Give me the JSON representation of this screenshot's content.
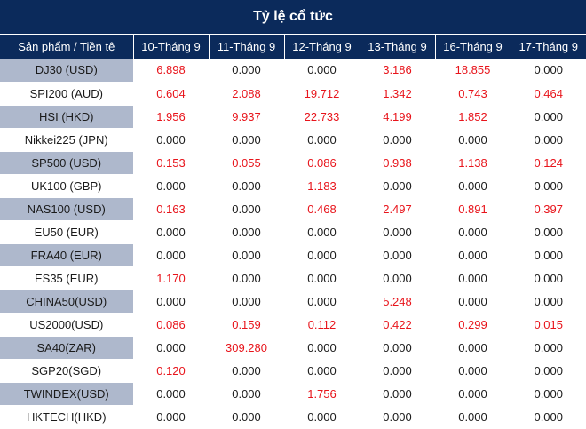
{
  "title": "Tỷ lệ cổ tức",
  "header": {
    "product": "Sản phẩm / Tiền tệ",
    "dates": [
      "10-Tháng 9",
      "11-Tháng 9",
      "12-Tháng 9",
      "13-Tháng 9",
      "16-Tháng 9",
      "17-Tháng 9"
    ]
  },
  "colors": {
    "header_bg": "#0b2a5b",
    "shade": "#aeb8cc",
    "nonzero": "#e8141b",
    "zero": "#1a1a1a"
  },
  "rows": [
    {
      "product": "DJ30 (USD)",
      "values": [
        "6.898",
        "0.000",
        "0.000",
        "3.186",
        "18.855",
        "0.000"
      ]
    },
    {
      "product": "SPI200 (AUD)",
      "values": [
        "0.604",
        "2.088",
        "19.712",
        "1.342",
        "0.743",
        "0.464"
      ]
    },
    {
      "product": "HSI (HKD)",
      "values": [
        "1.956",
        "9.937",
        "22.733",
        "4.199",
        "1.852",
        "0.000"
      ]
    },
    {
      "product": "Nikkei225 (JPN)",
      "values": [
        "0.000",
        "0.000",
        "0.000",
        "0.000",
        "0.000",
        "0.000"
      ]
    },
    {
      "product": "SP500 (USD)",
      "values": [
        "0.153",
        "0.055",
        "0.086",
        "0.938",
        "1.138",
        "0.124"
      ]
    },
    {
      "product": "UK100 (GBP)",
      "values": [
        "0.000",
        "0.000",
        "1.183",
        "0.000",
        "0.000",
        "0.000"
      ]
    },
    {
      "product": "NAS100 (USD)",
      "values": [
        "0.163",
        "0.000",
        "0.468",
        "2.497",
        "0.891",
        "0.397"
      ]
    },
    {
      "product": "EU50 (EUR)",
      "values": [
        "0.000",
        "0.000",
        "0.000",
        "0.000",
        "0.000",
        "0.000"
      ]
    },
    {
      "product": "FRA40 (EUR)",
      "values": [
        "0.000",
        "0.000",
        "0.000",
        "0.000",
        "0.000",
        "0.000"
      ]
    },
    {
      "product": "ES35 (EUR)",
      "values": [
        "1.170",
        "0.000",
        "0.000",
        "0.000",
        "0.000",
        "0.000"
      ]
    },
    {
      "product": "CHINA50(USD)",
      "values": [
        "0.000",
        "0.000",
        "0.000",
        "5.248",
        "0.000",
        "0.000"
      ]
    },
    {
      "product": "US2000(USD)",
      "values": [
        "0.086",
        "0.159",
        "0.112",
        "0.422",
        "0.299",
        "0.015"
      ]
    },
    {
      "product": "SA40(ZAR)",
      "values": [
        "0.000",
        "309.280",
        "0.000",
        "0.000",
        "0.000",
        "0.000"
      ]
    },
    {
      "product": "SGP20(SGD)",
      "values": [
        "0.120",
        "0.000",
        "0.000",
        "0.000",
        "0.000",
        "0.000"
      ]
    },
    {
      "product": "TWINDEX(USD)",
      "values": [
        "0.000",
        "0.000",
        "1.756",
        "0.000",
        "0.000",
        "0.000"
      ]
    },
    {
      "product": "HKTECH(HKD)",
      "values": [
        "0.000",
        "0.000",
        "0.000",
        "0.000",
        "0.000",
        "0.000"
      ]
    }
  ]
}
